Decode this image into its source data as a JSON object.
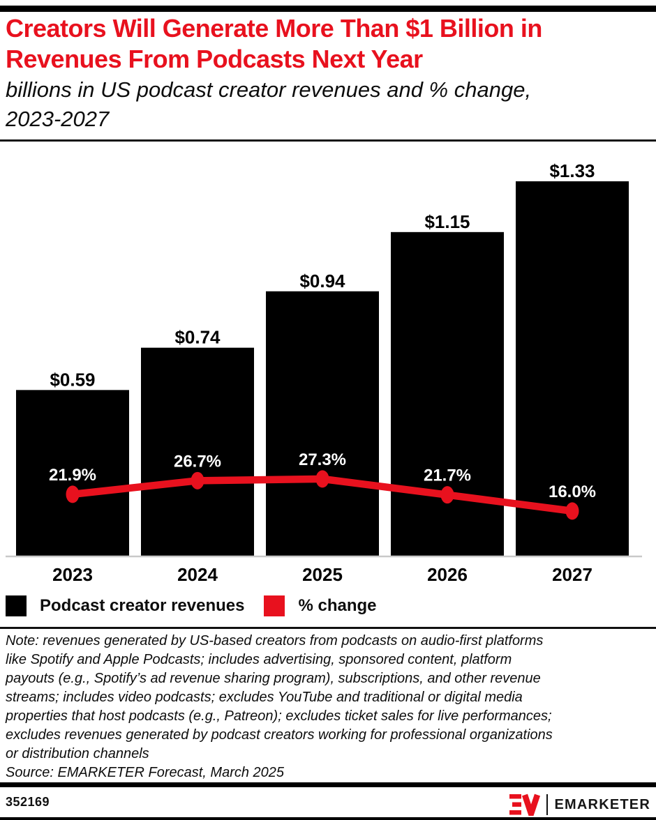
{
  "header": {
    "title_line1": "Creators Will Generate More Than $1 Billion in",
    "title_line2": "Revenues From Podcasts Next Year",
    "subtitle_line1": "billions in US podcast creator revenues and % change,",
    "subtitle_line2": "2023-2027"
  },
  "colors": {
    "accent_red": "#e8111e",
    "bar_black": "#000000",
    "axis_gray": "#c9c9c9",
    "pct_label_white": "#ffffff"
  },
  "chart_data": {
    "type": "bar",
    "subtype": "bar-line-combo",
    "title": "Creators Will Generate More Than $1 Billion in Revenues From Podcasts Next Year",
    "subtitle": "billions in US podcast creator revenues and % change, 2023-2027",
    "categories": [
      "2023",
      "2024",
      "2025",
      "2026",
      "2027"
    ],
    "series": [
      {
        "name": "Podcast creator revenues",
        "type": "bar",
        "color": "#000000",
        "values": [
          0.59,
          0.74,
          0.94,
          1.15,
          1.33
        ],
        "labels": [
          "$0.59",
          "$0.74",
          "$0.94",
          "$1.15",
          "$1.33"
        ],
        "unit": "billions USD"
      },
      {
        "name": "% change",
        "type": "line",
        "color": "#e8111e",
        "values": [
          21.9,
          26.7,
          27.3,
          21.7,
          16.0
        ],
        "labels": [
          "21.9%",
          "26.7%",
          "27.3%",
          "21.7%",
          "16.0%"
        ],
        "unit": "percent"
      }
    ],
    "xlabel": "",
    "ylabel": "",
    "grid": false,
    "legend_position": "bottom-left"
  },
  "legend": {
    "items": [
      {
        "label": "Podcast creator revenues",
        "color": "#000000"
      },
      {
        "label": "% change",
        "color": "#e8111e"
      }
    ]
  },
  "note_lines": [
    "Note: revenues generated by US-based creators from podcasts on audio-first platforms",
    "like Spotify and Apple Podcasts; includes advertising, sponsored content, platform",
    "payouts (e.g., Spotify’s ad revenue sharing program), subscriptions, and other revenue",
    "streams; includes video podcasts; excludes YouTube and traditional or digital media",
    "properties that host podcasts (e.g., Patreon); excludes ticket sales for live performances;",
    "excludes revenues generated by podcast creators working for professional organizations",
    "or distribution channels",
    "Source: EMARKETER Forecast, March 2025"
  ],
  "footer": {
    "chart_id": "352169",
    "brand": "EMARKETER"
  }
}
